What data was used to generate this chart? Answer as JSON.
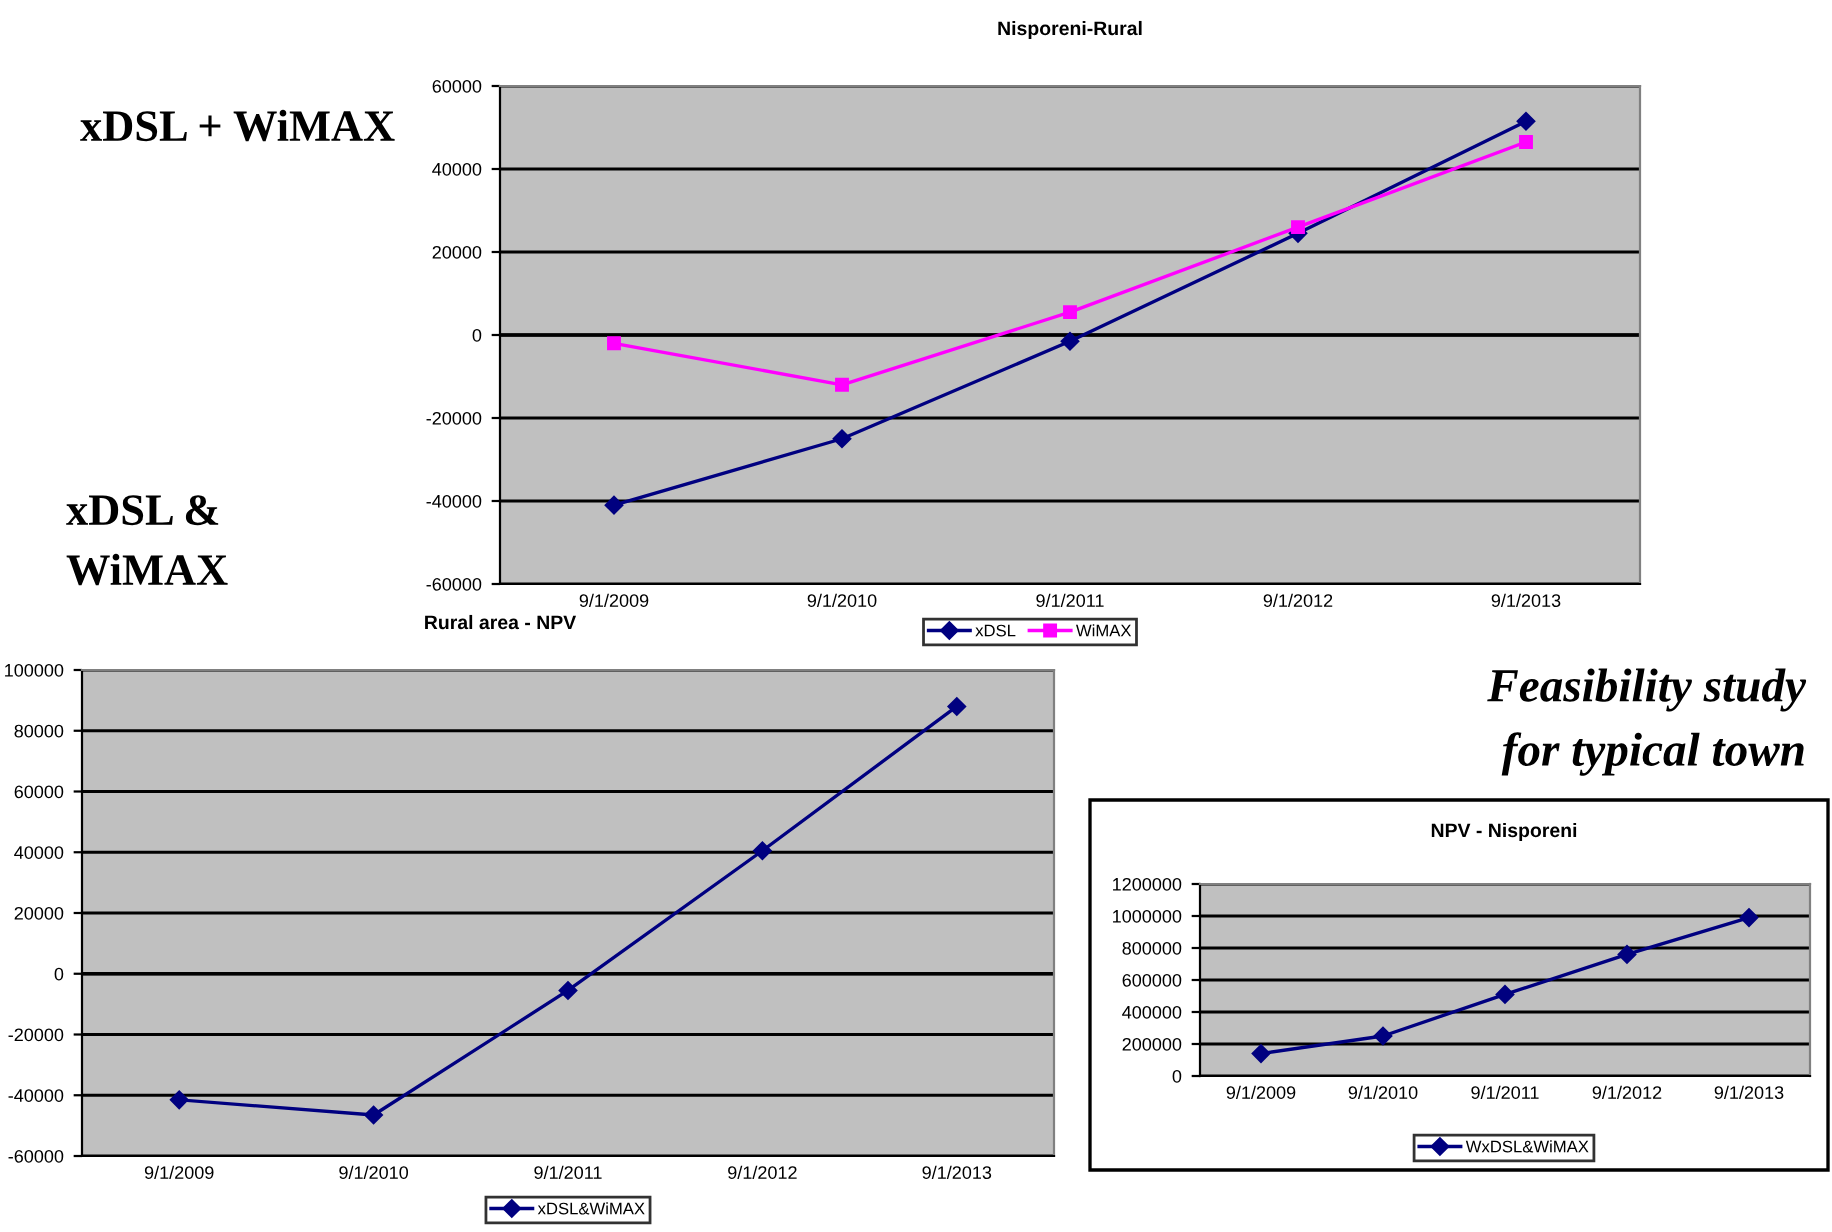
{
  "chart_data": [
    {
      "type": "line",
      "title": "Nisporeni-Rural",
      "annotations": [
        "xDSL + WiMAX"
      ],
      "categories": [
        "9/1/2009",
        "9/1/2010",
        "9/1/2011",
        "9/1/2012",
        "9/1/2013"
      ],
      "series": [
        {
          "name": "xDSL",
          "color": "#000080",
          "marker": "diamond",
          "values": [
            -41000,
            -25000,
            -1500,
            24500,
            51500
          ]
        },
        {
          "name": "WiMAX",
          "color": "#ff00ff",
          "marker": "square",
          "values": [
            -2000,
            -12000,
            5500,
            26000,
            46500
          ]
        }
      ],
      "ylim": [
        -60000,
        60000
      ],
      "yticks": [
        -60000,
        -40000,
        -20000,
        0,
        20000,
        40000,
        60000
      ],
      "grid": "y",
      "legend": "bottom",
      "line_style": "solid"
    },
    {
      "type": "line",
      "title": "Rural area - NPV",
      "annotations": [
        "xDSL &",
        "WiMAX"
      ],
      "categories": [
        "9/1/2009",
        "9/1/2010",
        "9/1/2011",
        "9/1/2012",
        "9/1/2013"
      ],
      "series": [
        {
          "name": "xDSL&WiMAX",
          "color": "#000080",
          "marker": "diamond",
          "values": [
            -41500,
            -46500,
            -5500,
            40500,
            88000
          ]
        }
      ],
      "ylim": [
        -60000,
        100000
      ],
      "yticks": [
        -60000,
        -40000,
        -20000,
        0,
        20000,
        40000,
        60000,
        80000,
        100000
      ],
      "grid": "y",
      "legend": "bottom",
      "line_style": "solid"
    },
    {
      "type": "line",
      "title": "NPV - Nisporeni",
      "annotations": [
        "Feasibility study",
        "for typical town"
      ],
      "categories": [
        "9/1/2009",
        "9/1/2010",
        "9/1/2011",
        "9/1/2012",
        "9/1/2013"
      ],
      "series": [
        {
          "name": "WxDSL&WiMAX",
          "color": "#000080",
          "marker": "diamond",
          "values": [
            140000,
            250000,
            510000,
            760000,
            990000
          ]
        }
      ],
      "ylim": [
        0,
        1200000
      ],
      "yticks": [
        0,
        200000,
        400000,
        600000,
        800000,
        1000000,
        1200000
      ],
      "grid": "y",
      "legend": "bottom",
      "line_style": "solid"
    }
  ]
}
